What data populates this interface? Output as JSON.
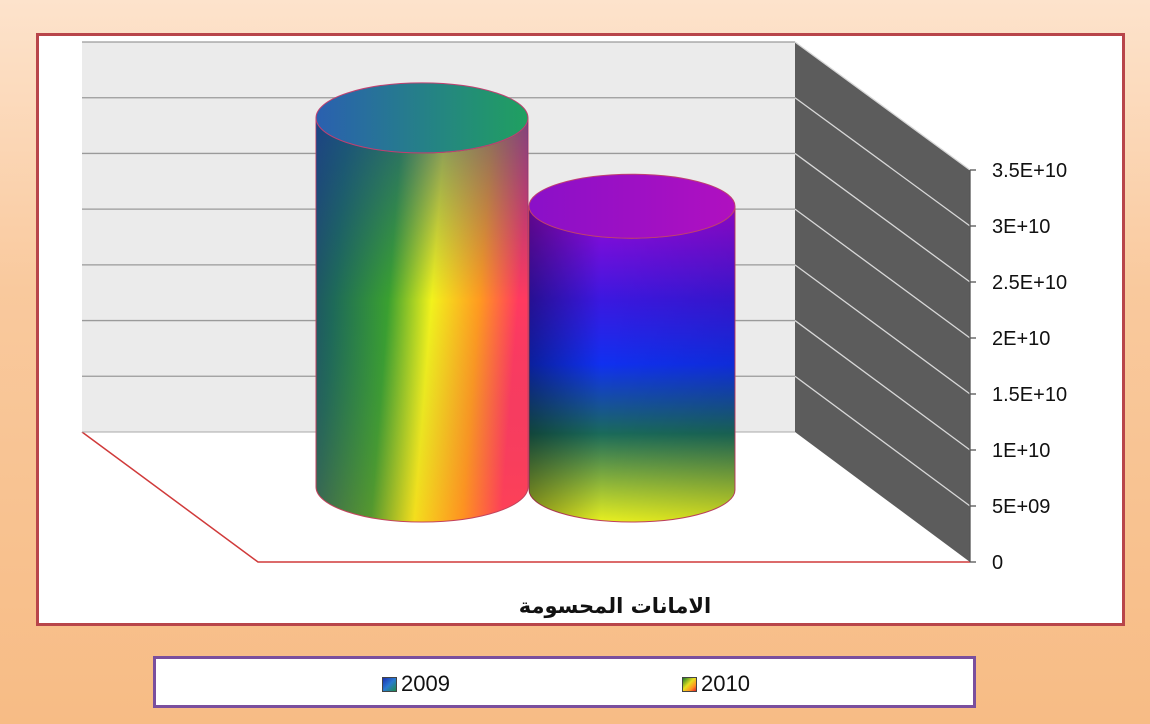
{
  "chart_data": {
    "type": "bar",
    "style": "3d-cylinder",
    "categories": [
      "الامانات المحسومة"
    ],
    "series": [
      {
        "name": "2009",
        "values": [
          33300000000
        ]
      },
      {
        "name": "2010",
        "values": [
          25600000000
        ]
      }
    ],
    "xlabel": "الامانات المحسومة",
    "ylabel": "",
    "ylim": [
      0,
      35000000000
    ],
    "y_ticks": [
      0,
      5000000000,
      10000000000,
      15000000000,
      20000000000,
      25000000000,
      30000000000,
      35000000000
    ],
    "y_tick_labels": [
      "0",
      "5E+09",
      "1E+10",
      "1.5E+10",
      "2E+10",
      "2.5E+10",
      "3E+10",
      "3.5E+10"
    ],
    "y_axis_side": "right",
    "grid": true,
    "legend_position": "bottom",
    "colors": {
      "background": "#f9c99d",
      "frame_border": "#b8454a",
      "legend_border": "#7a4f9e",
      "back_wall": "#ebebeb",
      "side_wall": "#5a5a5a",
      "floor_edge": "#d03a3a"
    }
  },
  "legend": {
    "items": [
      {
        "label": "2009"
      },
      {
        "label": "2010"
      }
    ]
  },
  "axis": {
    "category_label": "الامانات المحسومة"
  }
}
